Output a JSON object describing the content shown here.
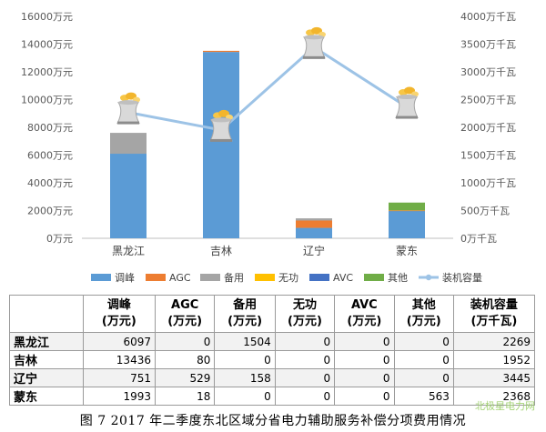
{
  "chart_data": {
    "type": "bar",
    "categories": [
      "黑龙江",
      "吉林",
      "辽宁",
      "蒙东"
    ],
    "series": [
      {
        "name": "调峰",
        "kind": "stacked-bar",
        "axis": "left",
        "color": "#5b9bd5",
        "values": [
          6097,
          13436,
          751,
          1993
        ]
      },
      {
        "name": "AGC",
        "kind": "stacked-bar",
        "axis": "left",
        "color": "#ed7d31",
        "values": [
          0,
          80,
          529,
          18
        ]
      },
      {
        "name": "备用",
        "kind": "stacked-bar",
        "axis": "left",
        "color": "#a5a5a5",
        "values": [
          1504,
          0,
          158,
          0
        ]
      },
      {
        "name": "无功",
        "kind": "stacked-bar",
        "axis": "left",
        "color": "#ffc000",
        "values": [
          0,
          0,
          0,
          0
        ]
      },
      {
        "name": "AVC",
        "kind": "stacked-bar",
        "axis": "left",
        "color": "#4472c4",
        "values": [
          0,
          0,
          0,
          0
        ]
      },
      {
        "name": "其他",
        "kind": "stacked-bar",
        "axis": "left",
        "color": "#70ad47",
        "values": [
          0,
          0,
          0,
          563
        ]
      },
      {
        "name": "装机容量",
        "kind": "line",
        "axis": "right",
        "color": "#9dc3e6",
        "values": [
          2269,
          1952,
          3445,
          2368
        ]
      }
    ],
    "y_left": {
      "range": [
        0,
        16000
      ],
      "ticks": [
        0,
        2000,
        4000,
        6000,
        8000,
        10000,
        12000,
        14000,
        16000
      ],
      "unit": "万元"
    },
    "y_right": {
      "range": [
        0,
        4000
      ],
      "ticks": [
        0,
        500,
        1000,
        1500,
        2000,
        2500,
        3000,
        3500,
        4000
      ],
      "unit": "万千瓦"
    },
    "legend_position": "bottom",
    "grid": false
  },
  "table": {
    "headers": [
      {
        "line1": "",
        "line2": ""
      },
      {
        "line1": "调峰",
        "line2": "(万元)"
      },
      {
        "line1": "AGC",
        "line2": "(万元)"
      },
      {
        "line1": "备用",
        "line2": "(万元)"
      },
      {
        "line1": "无功",
        "line2": "(万元)"
      },
      {
        "line1": "AVC",
        "line2": "(万元)"
      },
      {
        "line1": "其他",
        "line2": "(万元)"
      },
      {
        "line1": "装机容量",
        "line2": "(万千瓦)"
      }
    ],
    "rows": [
      {
        "region": "黑龙江",
        "values": [
          "6097",
          "0",
          "1504",
          "0",
          "0",
          "0",
          "2269"
        ]
      },
      {
        "region": "吉林",
        "values": [
          "13436",
          "80",
          "0",
          "0",
          "0",
          "0",
          "1952"
        ]
      },
      {
        "region": "辽宁",
        "values": [
          "751",
          "529",
          "158",
          "0",
          "0",
          "0",
          "3445"
        ]
      },
      {
        "region": "蒙东",
        "values": [
          "1993",
          "18",
          "0",
          "0",
          "0",
          "563",
          "2368"
        ]
      }
    ]
  },
  "caption": "图 7   2017 年二季度东北区域分省电力辅助服务补偿分项费用情况",
  "watermark": "北极星电力网"
}
